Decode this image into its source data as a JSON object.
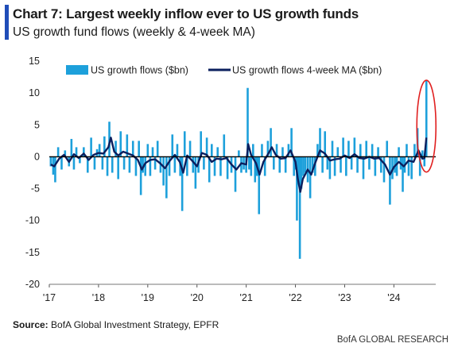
{
  "header": {
    "title": "Chart 7: Largest weekly inflow ever to US growth funds",
    "subtitle": "US growth fund flows (weekly & 4-week MA)"
  },
  "footer": {
    "source_label": "Source:",
    "source_text": "BofA Global Investment Strategy, EPFR",
    "brand": "BofA GLOBAL RESEARCH"
  },
  "colors": {
    "accent": "#1f4db8",
    "weekly": "#1da0db",
    "ma": "#0b1f5e",
    "highlight": "#e02020",
    "axis": "#000000"
  },
  "chart_data": {
    "type": "bar",
    "title": "Chart 7: Largest weekly inflow ever to US growth funds",
    "subtitle": "US growth fund flows (weekly & 4-week MA)",
    "ylim": [
      -20,
      15
    ],
    "yticks": [
      15,
      10,
      5,
      0,
      -5,
      -10,
      -15,
      -20
    ],
    "xticks": [
      "'17",
      "'18",
      "'19",
      "'20",
      "'21",
      "'22",
      "'23",
      "'24"
    ],
    "xrange": [
      2017.0,
      2024.85
    ],
    "legend": [
      "US growth flows ($bn)",
      "US growth flows 4-week MA ($bn)"
    ],
    "legend_position": "top-right",
    "highlight": "latest week circled in red",
    "series": [
      {
        "name": "US growth flows ($bn)",
        "kind": "bar",
        "points": [
          [
            2017.03,
            -1.5
          ],
          [
            2017.08,
            -2.8
          ],
          [
            2017.12,
            -4.0
          ],
          [
            2017.18,
            1.5
          ],
          [
            2017.25,
            -2.0
          ],
          [
            2017.32,
            1.0
          ],
          [
            2017.4,
            -1.5
          ],
          [
            2017.45,
            2.8
          ],
          [
            2017.5,
            -2.0
          ],
          [
            2017.55,
            1.5
          ],
          [
            2017.62,
            -1.0
          ],
          [
            2017.7,
            1.5
          ],
          [
            2017.78,
            -2.5
          ],
          [
            2017.85,
            3.0
          ],
          [
            2017.92,
            -2.0
          ],
          [
            2017.97,
            1.2
          ],
          [
            2018.02,
            2.0
          ],
          [
            2018.08,
            -2.0
          ],
          [
            2018.12,
            3.2
          ],
          [
            2018.18,
            -3.0
          ],
          [
            2018.22,
            5.5
          ],
          [
            2018.28,
            -2.5
          ],
          [
            2018.35,
            2.5
          ],
          [
            2018.4,
            -3.5
          ],
          [
            2018.45,
            4.0
          ],
          [
            2018.52,
            -2.0
          ],
          [
            2018.58,
            3.5
          ],
          [
            2018.63,
            -2.5
          ],
          [
            2018.7,
            2.5
          ],
          [
            2018.76,
            -3.0
          ],
          [
            2018.82,
            2.5
          ],
          [
            2018.86,
            -6.0
          ],
          [
            2018.9,
            -2.5
          ],
          [
            2018.95,
            -3.0
          ],
          [
            2019.0,
            2.0
          ],
          [
            2019.05,
            -3.0
          ],
          [
            2019.1,
            1.5
          ],
          [
            2019.15,
            -2.0
          ],
          [
            2019.2,
            2.5
          ],
          [
            2019.26,
            -2.5
          ],
          [
            2019.32,
            -4.5
          ],
          [
            2019.38,
            -6.5
          ],
          [
            2019.44,
            -3.0
          ],
          [
            2019.5,
            3.5
          ],
          [
            2019.55,
            -2.5
          ],
          [
            2019.6,
            2.0
          ],
          [
            2019.66,
            -3.0
          ],
          [
            2019.7,
            -8.5
          ],
          [
            2019.75,
            4.0
          ],
          [
            2019.8,
            -3.0
          ],
          [
            2019.86,
            2.5
          ],
          [
            2019.92,
            -2.5
          ],
          [
            2019.97,
            -5.0
          ],
          [
            2020.03,
            -2.5
          ],
          [
            2020.08,
            4.0
          ],
          [
            2020.14,
            -2.0
          ],
          [
            2020.2,
            3.0
          ],
          [
            2020.25,
            -4.0
          ],
          [
            2020.3,
            2.0
          ],
          [
            2020.36,
            -3.0
          ],
          [
            2020.42,
            1.5
          ],
          [
            2020.48,
            -3.0
          ],
          [
            2020.55,
            3.5
          ],
          [
            2020.62,
            -3.5
          ],
          [
            2020.7,
            -2.5
          ],
          [
            2020.78,
            -5.5
          ],
          [
            2020.85,
            1.0
          ],
          [
            2020.9,
            -2.5
          ],
          [
            2020.95,
            -2.0
          ],
          [
            2021.0,
            -2.5
          ],
          [
            2021.03,
            10.8
          ],
          [
            2021.06,
            -2.0
          ],
          [
            2021.1,
            -3.0
          ],
          [
            2021.14,
            2.0
          ],
          [
            2021.18,
            -4.0
          ],
          [
            2021.22,
            -3.0
          ],
          [
            2021.26,
            -9.0
          ],
          [
            2021.32,
            2.0
          ],
          [
            2021.38,
            -3.0
          ],
          [
            2021.44,
            2.5
          ],
          [
            2021.5,
            4.5
          ],
          [
            2021.56,
            -2.0
          ],
          [
            2021.62,
            2.0
          ],
          [
            2021.68,
            -2.5
          ],
          [
            2021.74,
            1.5
          ],
          [
            2021.8,
            -2.5
          ],
          [
            2021.86,
            2.0
          ],
          [
            2021.92,
            4.5
          ],
          [
            2021.97,
            -3.0
          ],
          [
            2022.0,
            -2.0
          ],
          [
            2022.03,
            -10.0
          ],
          [
            2022.06,
            -4.0
          ],
          [
            2022.09,
            -16.0
          ],
          [
            2022.12,
            -5.0
          ],
          [
            2022.16,
            -3.0
          ],
          [
            2022.2,
            -2.5
          ],
          [
            2022.25,
            -4.0
          ],
          [
            2022.3,
            -6.5
          ],
          [
            2022.35,
            -2.5
          ],
          [
            2022.4,
            -3.0
          ],
          [
            2022.45,
            2.0
          ],
          [
            2022.5,
            4.5
          ],
          [
            2022.55,
            -2.5
          ],
          [
            2022.6,
            4.0
          ],
          [
            2022.65,
            -2.0
          ],
          [
            2022.7,
            -3.5
          ],
          [
            2022.75,
            2.5
          ],
          [
            2022.8,
            -3.0
          ],
          [
            2022.86,
            1.5
          ],
          [
            2022.92,
            -2.5
          ],
          [
            2022.97,
            3.0
          ],
          [
            2023.03,
            -3.0
          ],
          [
            2023.08,
            2.5
          ],
          [
            2023.14,
            -2.0
          ],
          [
            2023.2,
            3.0
          ],
          [
            2023.26,
            -2.5
          ],
          [
            2023.32,
            2.0
          ],
          [
            2023.38,
            -3.5
          ],
          [
            2023.44,
            2.5
          ],
          [
            2023.5,
            -2.0
          ],
          [
            2023.56,
            2.0
          ],
          [
            2023.62,
            -3.0
          ],
          [
            2023.68,
            1.5
          ],
          [
            2023.74,
            -2.5
          ],
          [
            2023.8,
            -4.0
          ],
          [
            2023.86,
            2.5
          ],
          [
            2023.92,
            -7.5
          ],
          [
            2023.97,
            -3.5
          ],
          [
            2024.02,
            -2.5
          ],
          [
            2024.06,
            -3.0
          ],
          [
            2024.1,
            1.5
          ],
          [
            2024.14,
            -2.0
          ],
          [
            2024.18,
            -5.5
          ],
          [
            2024.22,
            -2.5
          ],
          [
            2024.26,
            2.0
          ],
          [
            2024.3,
            -3.0
          ],
          [
            2024.36,
            -3.5
          ],
          [
            2024.42,
            2.0
          ],
          [
            2024.48,
            4.5
          ],
          [
            2024.53,
            -3.0
          ],
          [
            2024.58,
            1.0
          ],
          [
            2024.62,
            -1.5
          ],
          [
            2024.66,
            12.0
          ]
        ]
      },
      {
        "name": "US growth flows 4-week MA ($bn)",
        "kind": "line",
        "points": [
          [
            2017.03,
            -1.2
          ],
          [
            2017.1,
            -1.5
          ],
          [
            2017.2,
            -0.3
          ],
          [
            2017.3,
            0.3
          ],
          [
            2017.4,
            -0.8
          ],
          [
            2017.5,
            0.4
          ],
          [
            2017.6,
            -0.2
          ],
          [
            2017.7,
            0.5
          ],
          [
            2017.8,
            -0.5
          ],
          [
            2017.9,
            0.3
          ],
          [
            2018.0,
            0.6
          ],
          [
            2018.1,
            0.5
          ],
          [
            2018.2,
            1.5
          ],
          [
            2018.25,
            3.0
          ],
          [
            2018.32,
            0.8
          ],
          [
            2018.4,
            0.2
          ],
          [
            2018.5,
            0.8
          ],
          [
            2018.6,
            0.5
          ],
          [
            2018.7,
            0.2
          ],
          [
            2018.8,
            -0.5
          ],
          [
            2018.88,
            -2.0
          ],
          [
            2018.95,
            -1.0
          ],
          [
            2019.05,
            -0.5
          ],
          [
            2019.15,
            -0.4
          ],
          [
            2019.25,
            -1.0
          ],
          [
            2019.35,
            -1.8
          ],
          [
            2019.45,
            -0.6
          ],
          [
            2019.55,
            0.3
          ],
          [
            2019.65,
            -0.8
          ],
          [
            2019.72,
            -2.5
          ],
          [
            2019.8,
            0.2
          ],
          [
            2019.9,
            -0.6
          ],
          [
            2020.0,
            -1.5
          ],
          [
            2020.1,
            0.6
          ],
          [
            2020.2,
            0.3
          ],
          [
            2020.3,
            -0.8
          ],
          [
            2020.4,
            -0.3
          ],
          [
            2020.5,
            -0.4
          ],
          [
            2020.6,
            -0.2
          ],
          [
            2020.7,
            -1.2
          ],
          [
            2020.8,
            -2.0
          ],
          [
            2020.9,
            -1.0
          ],
          [
            2021.0,
            -1.2
          ],
          [
            2021.04,
            2.0
          ],
          [
            2021.1,
            0.3
          ],
          [
            2021.2,
            -1.0
          ],
          [
            2021.27,
            -2.8
          ],
          [
            2021.35,
            -0.8
          ],
          [
            2021.45,
            0.5
          ],
          [
            2021.52,
            1.5
          ],
          [
            2021.6,
            0.3
          ],
          [
            2021.7,
            -0.3
          ],
          [
            2021.8,
            -0.2
          ],
          [
            2021.9,
            1.0
          ],
          [
            2022.0,
            -0.8
          ],
          [
            2022.05,
            -3.5
          ],
          [
            2022.1,
            -5.5
          ],
          [
            2022.15,
            -3.5
          ],
          [
            2022.25,
            -2.0
          ],
          [
            2022.32,
            -2.8
          ],
          [
            2022.4,
            -1.0
          ],
          [
            2022.5,
            1.0
          ],
          [
            2022.6,
            0.5
          ],
          [
            2022.7,
            -0.6
          ],
          [
            2022.8,
            -0.4
          ],
          [
            2022.9,
            -0.3
          ],
          [
            2023.0,
            0.2
          ],
          [
            2023.1,
            -0.2
          ],
          [
            2023.2,
            0.4
          ],
          [
            2023.3,
            -0.2
          ],
          [
            2023.4,
            -0.3
          ],
          [
            2023.5,
            0.0
          ],
          [
            2023.6,
            -0.3
          ],
          [
            2023.7,
            -0.2
          ],
          [
            2023.82,
            -1.2
          ],
          [
            2023.92,
            -2.8
          ],
          [
            2024.0,
            -1.6
          ],
          [
            2024.1,
            -0.8
          ],
          [
            2024.2,
            -1.5
          ],
          [
            2024.3,
            -0.6
          ],
          [
            2024.4,
            -0.8
          ],
          [
            2024.5,
            1.0
          ],
          [
            2024.58,
            -0.3
          ],
          [
            2024.62,
            -0.2
          ],
          [
            2024.66,
            3.0
          ]
        ]
      }
    ]
  }
}
